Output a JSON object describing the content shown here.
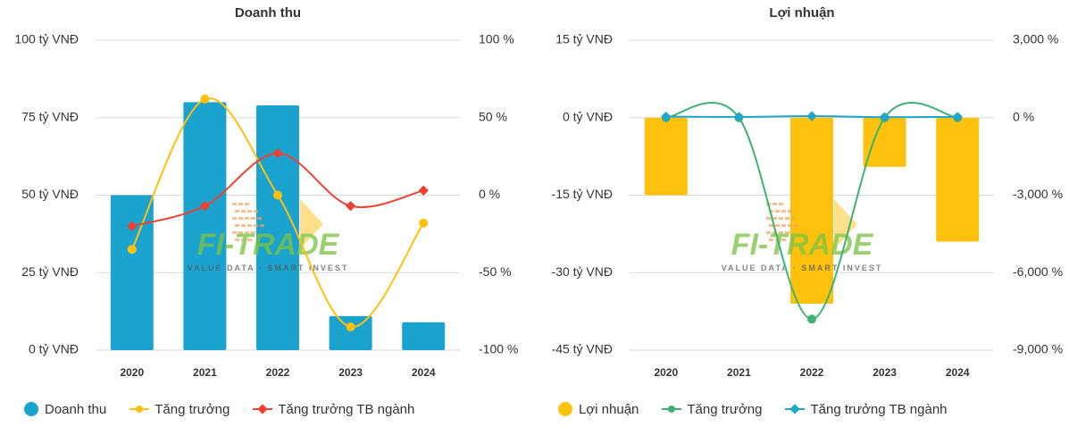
{
  "watermark": {
    "brand": "FI-TRADE",
    "tagline": "VALUE DATA · SMART INVEST"
  },
  "colors": {
    "blue": "#1aa3cf",
    "yellow": "#fdc10e",
    "red": "#ef4133",
    "green": "#3cb371",
    "cyan": "#1fa6c9"
  },
  "chart_data": [
    {
      "type": "bar",
      "title": "Doanh thu",
      "categories": [
        "2020",
        "2021",
        "2022",
        "2023",
        "2024"
      ],
      "y_left": {
        "ticks": [
          "100 tỷ VNĐ",
          "75 tỷ VNĐ",
          "50 tỷ VNĐ",
          "25 tỷ VNĐ",
          "0 tỷ VNĐ"
        ],
        "min": 0,
        "max": 100
      },
      "y_right": {
        "ticks": [
          "100 %",
          "50 %",
          "0 %",
          "-50 %",
          "-100 %"
        ],
        "min": -100,
        "max": 100
      },
      "grid": true,
      "legend_position": "bottom-left",
      "series": [
        {
          "name": "Doanh thu",
          "kind": "bar",
          "axis": "left",
          "color": "#1aa3cf",
          "values": [
            50,
            80,
            79,
            11,
            9
          ]
        },
        {
          "name": "Tăng trưởng",
          "kind": "line",
          "axis": "right",
          "color": "#fdc10e",
          "values": [
            -35,
            62,
            0,
            -85,
            -18
          ]
        },
        {
          "name": "Tăng trưởng TB ngành",
          "kind": "line",
          "axis": "right",
          "color": "#ef4133",
          "values": [
            -20,
            -7,
            27,
            -7,
            3
          ]
        }
      ]
    },
    {
      "type": "bar",
      "title": "Lợi nhuận",
      "categories": [
        "2020",
        "2021",
        "2022",
        "2023",
        "2024"
      ],
      "y_left": {
        "ticks": [
          "15 tỷ VNĐ",
          "0 tỷ VNĐ",
          "-15 tỷ VNĐ",
          "-30 tỷ VNĐ",
          "-45 tỷ VNĐ"
        ],
        "min": -45,
        "max": 15
      },
      "y_right": {
        "ticks": [
          "3,000 %",
          "0 %",
          "-3,000 %",
          "-6,000 %",
          "-9,000 %"
        ],
        "min": -9000,
        "max": 3000
      },
      "grid": true,
      "legend_position": "bottom-left",
      "series": [
        {
          "name": "Lợi nhuận",
          "kind": "bar",
          "axis": "left",
          "color": "#fdc10e",
          "values": [
            -15,
            0,
            -36,
            -9.5,
            -24
          ]
        },
        {
          "name": "Tăng trưởng",
          "kind": "line",
          "axis": "right",
          "color": "#3cb371",
          "values": [
            0,
            0,
            -7800,
            0,
            0
          ]
        },
        {
          "name": "Tăng trưởng TB ngành",
          "kind": "line",
          "axis": "right",
          "color": "#1fa6c9",
          "values": [
            40,
            30,
            60,
            20,
            30
          ]
        }
      ]
    }
  ]
}
